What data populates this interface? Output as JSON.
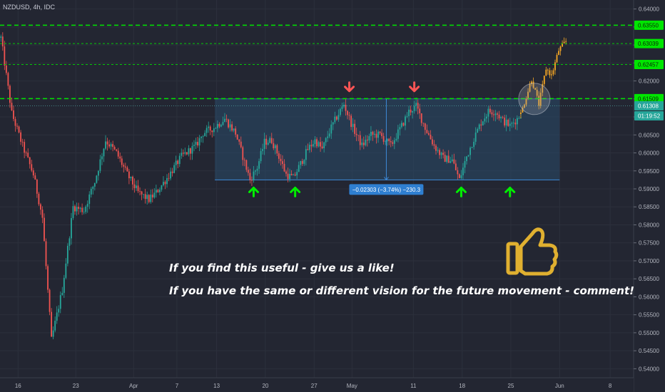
{
  "header": {
    "title": "NZDUSD, 4h, IDC"
  },
  "notes": {
    "line1": "If you find this useful - give us a like!",
    "line2": "If you have the same or different vision for the future movement - comment!"
  },
  "colors": {
    "background": "#232632",
    "bull": "#26a69a",
    "bear": "#ef5350",
    "projection": "#f5a623",
    "level": "#00e600",
    "range_box": "#2a4a6a",
    "range_border": "#3d8bd9",
    "up_arrow": "#00ee00",
    "down_arrow": "#ff5555",
    "thumb": "#e0b030"
  },
  "chart_data": {
    "type": "candlestick",
    "symbol": "NZDUSD",
    "timeframe": "4h",
    "source": "IDC",
    "ylim": [
      0.5375,
      0.6425
    ],
    "y_ticks": [
      "0.64000",
      "0.63500",
      "0.63000",
      "0.62500",
      "0.62000",
      "0.61500",
      "0.61000",
      "0.60500",
      "0.60000",
      "0.59500",
      "0.59000",
      "0.58500",
      "0.58000",
      "0.57500",
      "0.57000",
      "0.56500",
      "0.56000",
      "0.55500",
      "0.55000",
      "0.54500",
      "0.54000"
    ],
    "x_ticks": [
      {
        "label": "16",
        "bar": 10
      },
      {
        "label": "23",
        "bar": 42
      },
      {
        "label": "Apr",
        "bar": 74
      },
      {
        "label": "7",
        "bar": 98
      },
      {
        "label": "13",
        "bar": 120
      },
      {
        "label": "20",
        "bar": 147
      },
      {
        "label": "27",
        "bar": 174
      },
      {
        "label": "May",
        "bar": 195
      },
      {
        "label": "11",
        "bar": 229
      },
      {
        "label": "18",
        "bar": 256
      },
      {
        "label": "25",
        "bar": 283
      },
      {
        "label": "Jun",
        "bar": 310
      },
      {
        "label": "8",
        "bar": 338
      }
    ],
    "price_path": [
      [
        0,
        0.632
      ],
      [
        6,
        0.611
      ],
      [
        12,
        0.602
      ],
      [
        18,
        0.594
      ],
      [
        23,
        0.582
      ],
      [
        28,
        0.548
      ],
      [
        34,
        0.562
      ],
      [
        40,
        0.585
      ],
      [
        46,
        0.584
      ],
      [
        52,
        0.592
      ],
      [
        58,
        0.6035
      ],
      [
        64,
        0.6
      ],
      [
        70,
        0.594
      ],
      [
        76,
        0.589
      ],
      [
        82,
        0.587
      ],
      [
        86,
        0.589
      ],
      [
        92,
        0.593
      ],
      [
        100,
        0.599
      ],
      [
        108,
        0.602
      ],
      [
        112,
        0.6055
      ],
      [
        118,
        0.607
      ],
      [
        124,
        0.6095
      ],
      [
        130,
        0.6055
      ],
      [
        134,
        0.599
      ],
      [
        138,
        0.5925
      ],
      [
        142,
        0.596
      ],
      [
        146,
        0.603
      ],
      [
        150,
        0.6035
      ],
      [
        154,
        0.599
      ],
      [
        158,
        0.594
      ],
      [
        162,
        0.593
      ],
      [
        166,
        0.597
      ],
      [
        170,
        0.601
      ],
      [
        174,
        0.6035
      ],
      [
        178,
        0.601
      ],
      [
        182,
        0.606
      ],
      [
        186,
        0.61
      ],
      [
        190,
        0.6135
      ],
      [
        195,
        0.607
      ],
      [
        200,
        0.602
      ],
      [
        205,
        0.605
      ],
      [
        210,
        0.605
      ],
      [
        216,
        0.602
      ],
      [
        222,
        0.6075
      ],
      [
        226,
        0.6115
      ],
      [
        230,
        0.613
      ],
      [
        235,
        0.607
      ],
      [
        240,
        0.602
      ],
      [
        245,
        0.5985
      ],
      [
        250,
        0.598
      ],
      [
        254,
        0.5925
      ],
      [
        258,
        0.599
      ],
      [
        262,
        0.604
      ],
      [
        266,
        0.6085
      ],
      [
        270,
        0.6115
      ],
      [
        274,
        0.6115
      ],
      [
        278,
        0.609
      ],
      [
        282,
        0.6075
      ],
      [
        286,
        0.6095
      ],
      [
        288,
        0.6108
      ]
    ],
    "projection_path": [
      [
        288,
        0.6108
      ],
      [
        294,
        0.6205
      ],
      [
        298,
        0.6135
      ],
      [
        302,
        0.6235
      ],
      [
        305,
        0.6215
      ],
      [
        309,
        0.6285
      ],
      [
        313,
        0.631
      ]
    ],
    "levels": [
      {
        "price": 0.6355,
        "label": "0.63550",
        "style": "bold"
      },
      {
        "price": 0.63039,
        "label": "0.63039",
        "style": "thin"
      },
      {
        "price": 0.62457,
        "label": "0.62457",
        "style": "thin"
      },
      {
        "price": 0.61509,
        "label": "0.61509",
        "style": "bold"
      }
    ],
    "current_price": {
      "price": 0.61308,
      "label": "0.61308",
      "countdown": "01:19:52"
    },
    "range_box": {
      "top": 0.615,
      "bottom": 0.5925,
      "bar_start": 119,
      "bar_end": 310
    },
    "measure": {
      "bar": 214,
      "top": 0.615,
      "bottom": 0.5925,
      "label": "−0.02303 (−3.74%) −230.3"
    },
    "up_arrows": [
      {
        "bar": 140
      },
      {
        "bar": 163
      },
      {
        "bar": 255
      },
      {
        "bar": 282
      }
    ],
    "down_arrows": [
      {
        "bar": 193
      },
      {
        "bar": 229
      }
    ],
    "circle": {
      "bar": 296,
      "price": 0.615
    }
  }
}
